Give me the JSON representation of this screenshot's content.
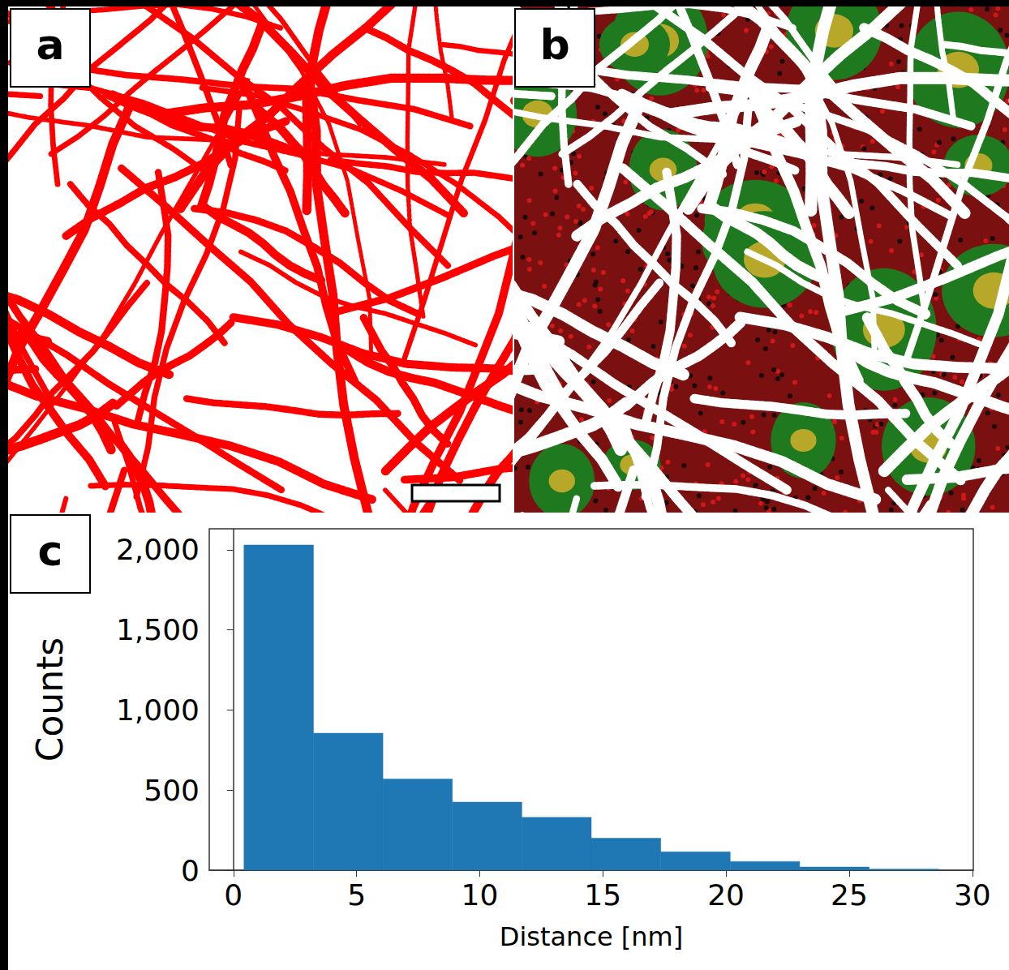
{
  "panels": [
    {
      "label": "a"
    },
    {
      "label": "b"
    },
    {
      "label": "c"
    }
  ],
  "chart_data": {
    "type": "histogram",
    "x_label": "Distance [nm]",
    "y_label": "Counts",
    "bins": [
      0.43,
      3.25,
      6.07,
      8.89,
      11.71,
      14.53,
      17.35,
      20.17,
      22.99,
      25.81,
      28.63
    ],
    "values": [
      2030,
      855,
      570,
      425,
      330,
      200,
      115,
      55,
      20,
      8
    ],
    "color": "#1f77b4",
    "xlim": [
      -0.98,
      30.04
    ],
    "xticks": [
      0,
      5,
      10,
      15,
      20,
      25,
      30
    ],
    "ylim": [
      0,
      2131
    ],
    "yticks": [
      0,
      500,
      1000,
      1500,
      2000
    ],
    "grid": false
  }
}
